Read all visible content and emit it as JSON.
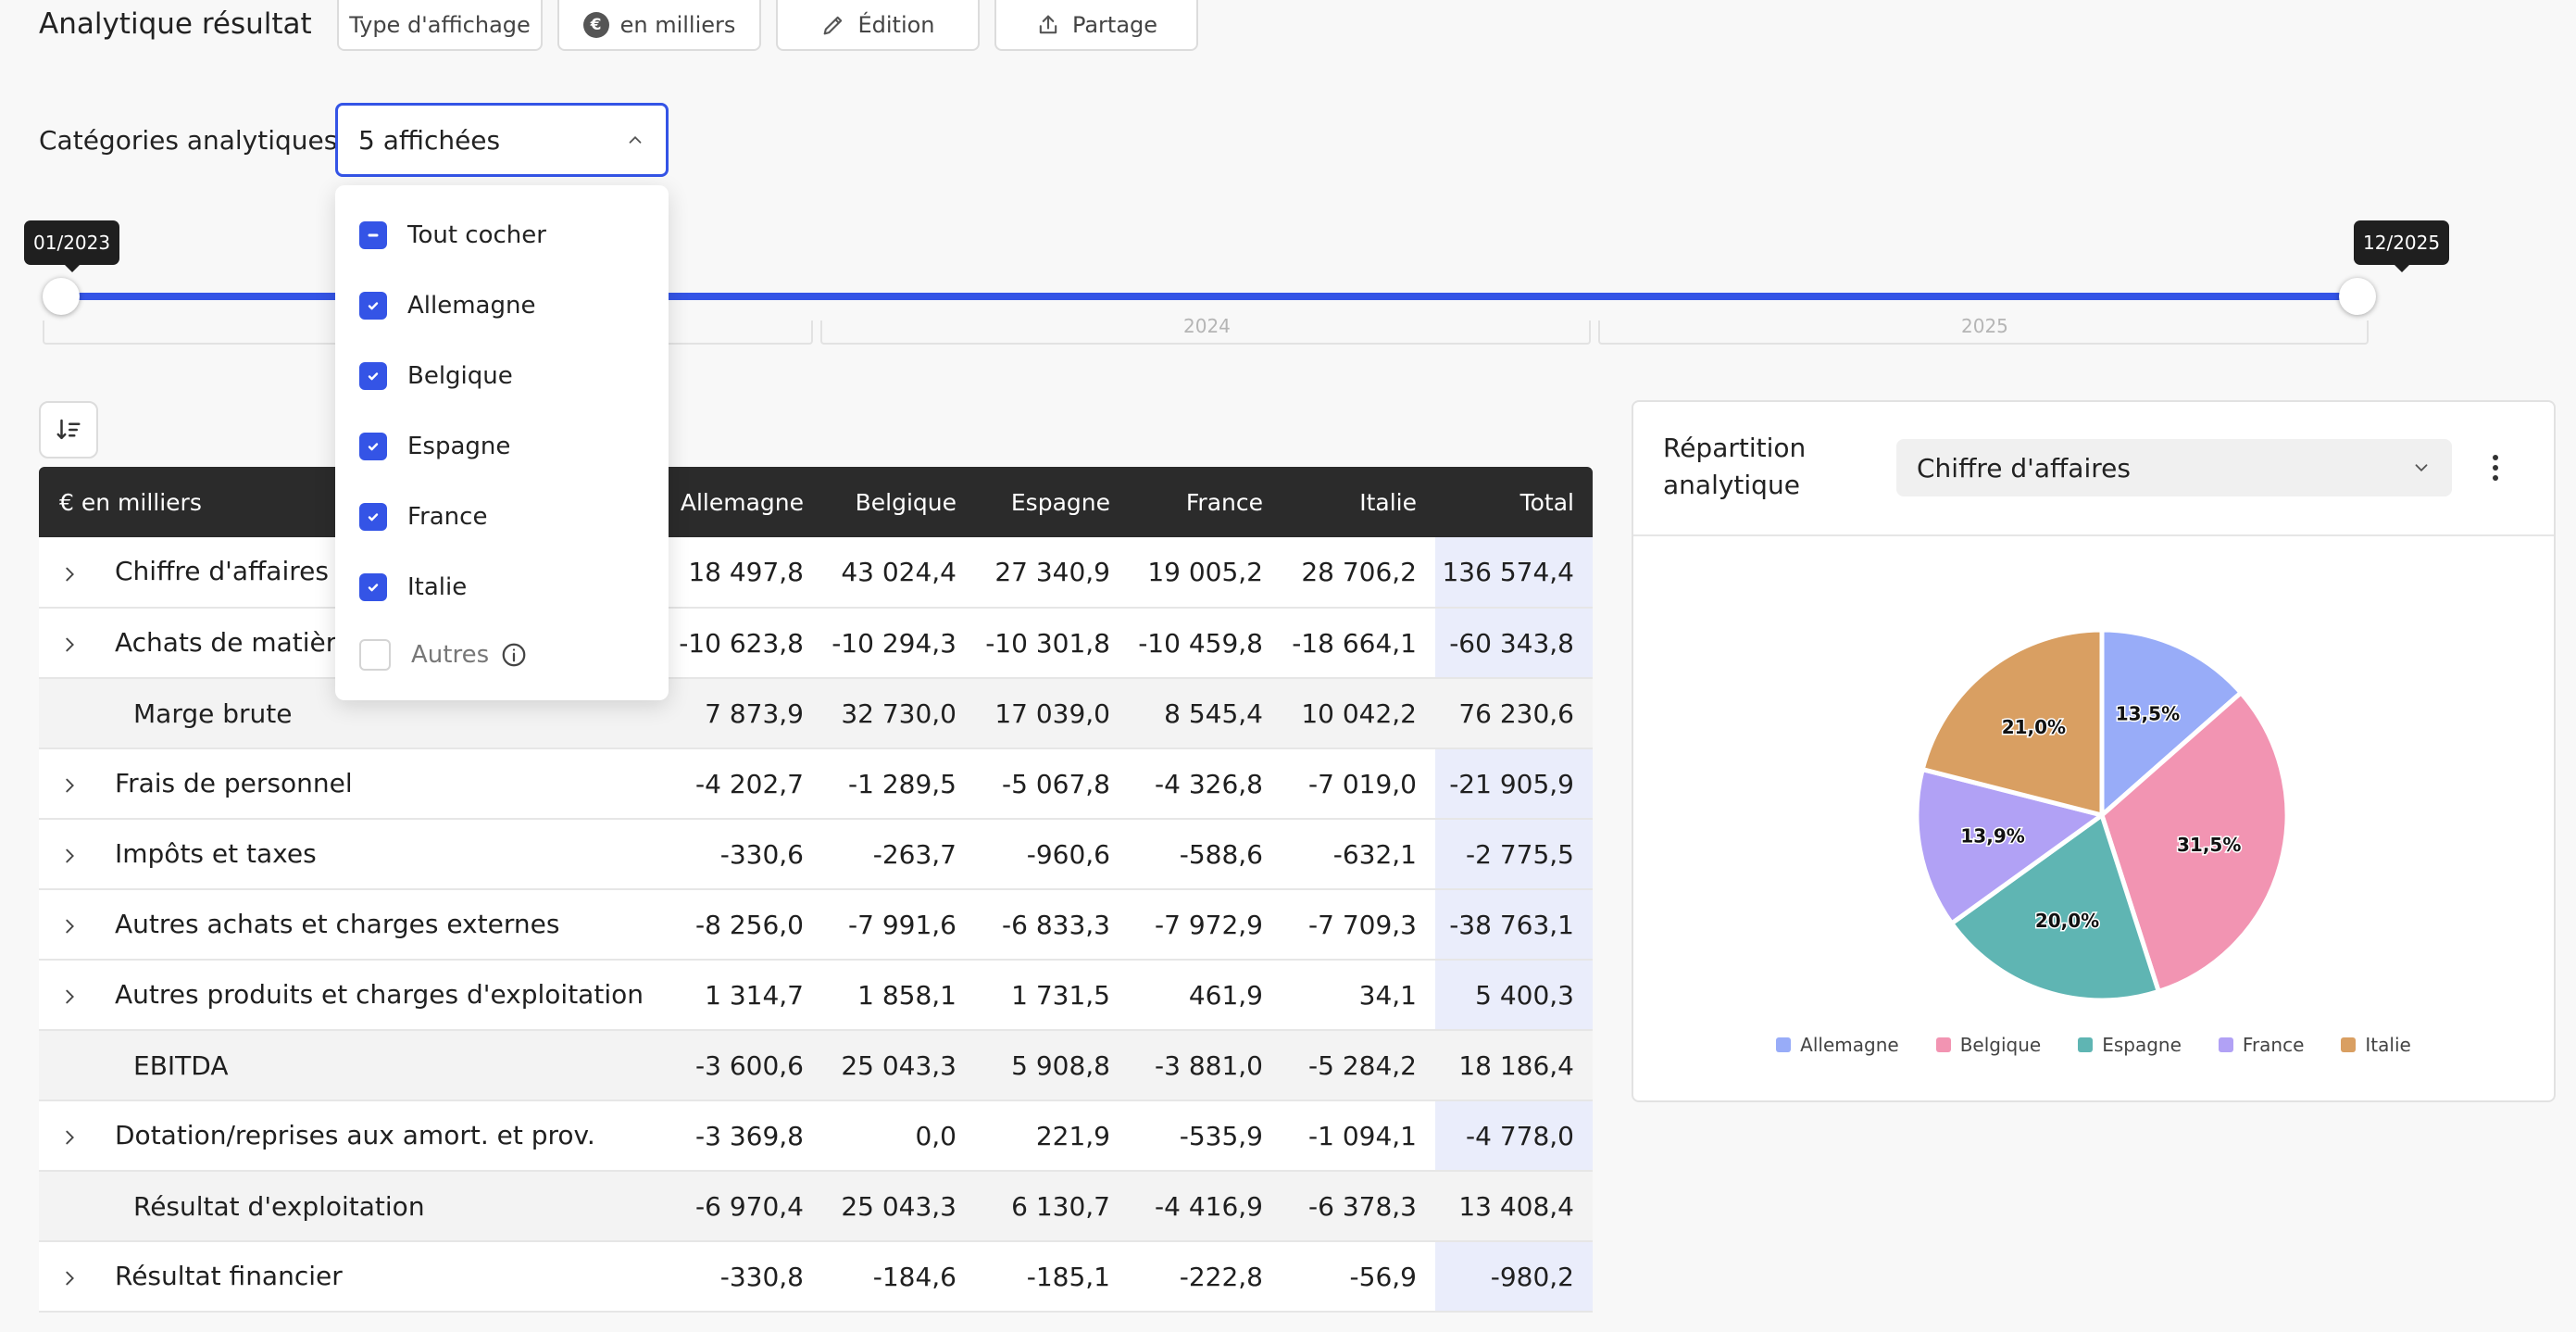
{
  "header": {
    "title": "Analytique résultat",
    "buttons": {
      "display_type": "Type d'affichage",
      "currency_symbol": "€",
      "units": "en milliers",
      "edit": "Édition",
      "share": "Partage"
    }
  },
  "filter": {
    "label": "Catégories analytiques",
    "selected_value": "5 affichées",
    "options": [
      {
        "label": "Tout cocher",
        "state": "indeterminate"
      },
      {
        "label": "Allemagne",
        "state": "checked"
      },
      {
        "label": "Belgique",
        "state": "checked"
      },
      {
        "label": "Espagne",
        "state": "checked"
      },
      {
        "label": "France",
        "state": "checked"
      },
      {
        "label": "Italie",
        "state": "checked"
      },
      {
        "label": "Autres",
        "state": "unchecked"
      }
    ]
  },
  "period": {
    "start_label": "01/2023",
    "end_label": "12/2025",
    "years": [
      "2024",
      "2025"
    ]
  },
  "table": {
    "corner_label": "€ en milliers",
    "columns": [
      "Allemagne",
      "Belgique",
      "Espagne",
      "France",
      "Italie",
      "Total"
    ],
    "rows": [
      {
        "label": "Chiffre d'affaires",
        "expandable": true,
        "values": [
          "18 497,8",
          "43 024,4",
          "27 340,9",
          "19 005,2",
          "28 706,2",
          "136 574,4"
        ]
      },
      {
        "label": "Achats de matières",
        "expandable": true,
        "values": [
          "-10 623,8",
          "-10 294,3",
          "-10 301,8",
          "-10 459,8",
          "-18 664,1",
          "-60 343,8"
        ]
      },
      {
        "label": "Marge brute",
        "expandable": false,
        "values": [
          "7 873,9",
          "32 730,0",
          "17 039,0",
          "8 545,4",
          "10 042,2",
          "76 230,6"
        ]
      },
      {
        "label": "Frais de personnel",
        "expandable": true,
        "values": [
          "-4 202,7",
          "-1 289,5",
          "-5 067,8",
          "-4 326,8",
          "-7 019,0",
          "-21 905,9"
        ]
      },
      {
        "label": "Impôts et taxes",
        "expandable": true,
        "values": [
          "-330,6",
          "-263,7",
          "-960,6",
          "-588,6",
          "-632,1",
          "-2 775,5"
        ]
      },
      {
        "label": "Autres achats et charges externes",
        "expandable": true,
        "values": [
          "-8 256,0",
          "-7 991,6",
          "-6 833,3",
          "-7 972,9",
          "-7 709,3",
          "-38 763,1"
        ]
      },
      {
        "label": "Autres produits et charges d'exploitation",
        "expandable": true,
        "values": [
          "1 314,7",
          "1 858,1",
          "1 731,5",
          "461,9",
          "34,1",
          "5 400,3"
        ]
      },
      {
        "label": "EBITDA",
        "expandable": false,
        "values": [
          "-3 600,6",
          "25 043,3",
          "5 908,8",
          "-3 881,0",
          "-5 284,2",
          "18 186,4"
        ]
      },
      {
        "label": "Dotation/reprises aux amort. et prov.",
        "expandable": true,
        "values": [
          "-3 369,8",
          "0,0",
          "221,9",
          "-535,9",
          "-1 094,1",
          "-4 778,0"
        ]
      },
      {
        "label": "Résultat d'exploitation",
        "expandable": false,
        "values": [
          "-6 970,4",
          "25 043,3",
          "6 130,7",
          "-4 416,9",
          "-6 378,3",
          "13 408,4"
        ]
      },
      {
        "label": "Résultat financier",
        "expandable": true,
        "values": [
          "-330,8",
          "-184,6",
          "-185,1",
          "-222,8",
          "-56,9",
          "-980,2"
        ]
      }
    ]
  },
  "chart_panel": {
    "title": "Répartition analytique",
    "metric": "Chiffre d'affaires"
  },
  "chart_data": {
    "type": "pie",
    "title": "",
    "labels": [
      "Allemagne",
      "Belgique",
      "Espagne",
      "France",
      "Italie"
    ],
    "values": [
      13.5,
      31.5,
      20.0,
      13.9,
      21.0
    ],
    "value_labels": [
      "13,5%",
      "31,5%",
      "20,0%",
      "13,9%",
      "21,0%"
    ],
    "colors": [
      "#98acf8",
      "#f294b2",
      "#5fb5b3",
      "#b1a1f5",
      "#d99f62"
    ],
    "legend_position": "bottom"
  },
  "icons": {
    "edit": "pencil-icon",
    "share": "share-icon",
    "sort": "sort-icon",
    "row_expand": "chevron-right-icon",
    "select": "chevron-down-icon",
    "more": "kebab-icon",
    "info": "info-icon"
  }
}
